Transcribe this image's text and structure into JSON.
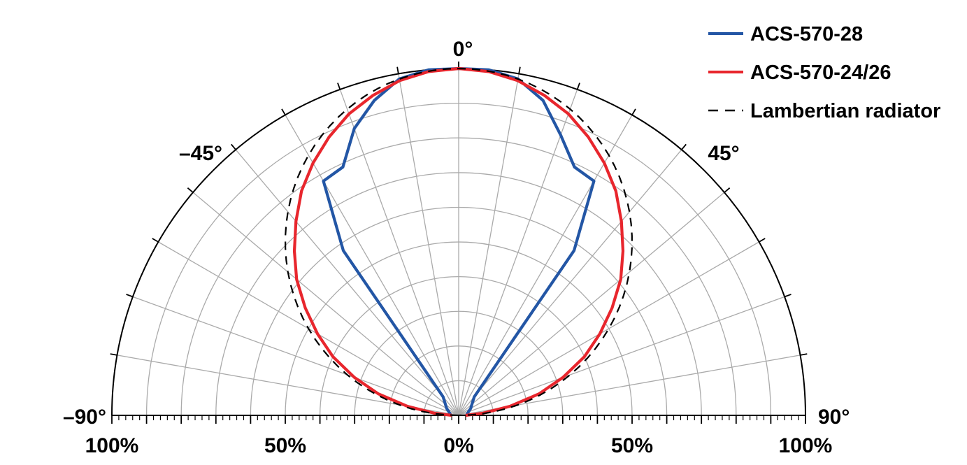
{
  "chart_data": {
    "type": "polar",
    "angle_ticks": [
      "0°",
      "45°",
      "–45°",
      "90°",
      "–90°"
    ],
    "radial_ticks": [
      "100%",
      "50%",
      "0%",
      "50%",
      "100%"
    ],
    "theta_range_deg": [
      -90,
      90
    ],
    "r_range_percent": [
      0,
      100
    ],
    "grid": true,
    "legend_position": "top-right",
    "legend": [
      "ACS-570-28",
      "ACS-570-24/26",
      "Lambertian radiator"
    ],
    "series": [
      {
        "name": "ACS-570-28",
        "color": "#2356a5",
        "style": "solid",
        "points": [
          [
            -90,
            3
          ],
          [
            -80,
            2.5
          ],
          [
            -70,
            3
          ],
          [
            -60,
            4
          ],
          [
            -50,
            5
          ],
          [
            -40,
            7
          ],
          [
            -35,
            58
          ],
          [
            -30,
            78
          ],
          [
            -25,
            79
          ],
          [
            -20,
            88
          ],
          [
            -15,
            94
          ],
          [
            -10,
            98.5
          ],
          [
            -5,
            100
          ],
          [
            0,
            100
          ],
          [
            5,
            100
          ],
          [
            10,
            98.5
          ],
          [
            15,
            94
          ],
          [
            20,
            86
          ],
          [
            25,
            79
          ],
          [
            30,
            78
          ],
          [
            35,
            58
          ],
          [
            40,
            7
          ],
          [
            50,
            5
          ],
          [
            60,
            4
          ],
          [
            70,
            3
          ],
          [
            80,
            2.5
          ],
          [
            90,
            3
          ]
        ]
      },
      {
        "name": "ACS-570-24/26",
        "color": "#e8262d",
        "style": "solid",
        "points": [
          [
            -90,
            2
          ],
          [
            -85,
            7
          ],
          [
            -80,
            15
          ],
          [
            -75,
            24
          ],
          [
            -70,
            32
          ],
          [
            -65,
            40
          ],
          [
            -60,
            47
          ],
          [
            -55,
            54
          ],
          [
            -50,
            61
          ],
          [
            -45,
            67
          ],
          [
            -40,
            73
          ],
          [
            -35,
            79
          ],
          [
            -30,
            84
          ],
          [
            -25,
            88.5
          ],
          [
            -20,
            92.5
          ],
          [
            -15,
            95.5
          ],
          [
            -10,
            98
          ],
          [
            -5,
            99.5
          ],
          [
            0,
            100
          ],
          [
            5,
            99.5
          ],
          [
            10,
            98
          ],
          [
            15,
            95.5
          ],
          [
            20,
            92.5
          ],
          [
            25,
            88.5
          ],
          [
            30,
            84
          ],
          [
            35,
            79
          ],
          [
            40,
            73
          ],
          [
            45,
            67
          ],
          [
            50,
            61
          ],
          [
            55,
            54
          ],
          [
            60,
            47
          ],
          [
            65,
            40
          ],
          [
            70,
            32
          ],
          [
            75,
            24
          ],
          [
            80,
            15
          ],
          [
            85,
            7
          ],
          [
            90,
            2
          ]
        ]
      },
      {
        "name": "Lambertian radiator",
        "color": "#000000",
        "style": "dashed",
        "function": "cos"
      }
    ]
  },
  "legend_items": [
    {
      "label": "ACS-570-28",
      "color": "#2356a5",
      "style": "solid"
    },
    {
      "label": "ACS-570-24/26",
      "color": "#e8262d",
      "style": "solid"
    },
    {
      "label": "Lambertian radiator",
      "color": "#000000",
      "style": "dashed"
    }
  ]
}
